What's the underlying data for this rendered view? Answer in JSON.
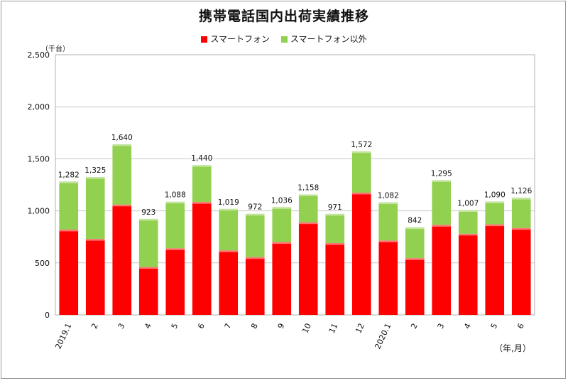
{
  "chart_data": {
    "type": "bar",
    "stacked": true,
    "title": "携帯電話国内出荷実績推移",
    "unit_label": "（千台）",
    "x_unit_label": "（年,月）",
    "categories": [
      "2019.1",
      "2",
      "3",
      "4",
      "5",
      "6",
      "7",
      "8",
      "9",
      "10",
      "11",
      "12",
      "2020.1",
      "2",
      "3",
      "4",
      "5",
      "6"
    ],
    "series": [
      {
        "name": "スマートフォン",
        "color": "#ff0000",
        "values": [
          820,
          730,
          1060,
          460,
          640,
          1085,
          620,
          555,
          700,
          890,
          690,
          1175,
          715,
          545,
          865,
          780,
          870,
          835
        ]
      },
      {
        "name": "スマートフォン以外",
        "color": "#92d050",
        "values": [
          462,
          595,
          580,
          463,
          448,
          355,
          399,
          417,
          336,
          268,
          281,
          397,
          367,
          297,
          430,
          227,
          220,
          291
        ]
      }
    ],
    "totals": [
      1282,
      1325,
      1640,
      923,
      1088,
      1440,
      1019,
      972,
      1036,
      1158,
      971,
      1572,
      1082,
      842,
      1295,
      1007,
      1090,
      1126
    ],
    "total_labels": [
      "1,282",
      "1,325",
      "1,640",
      "923",
      "1,088",
      "1,440",
      "1,019",
      "972",
      "1,036",
      "1,158",
      "971",
      "1,572",
      "1,082",
      "842",
      "1,295",
      "1,007",
      "1,090",
      "1,126"
    ],
    "ylim": [
      0,
      2500
    ],
    "yticks": [
      0,
      500,
      1000,
      1500,
      2000,
      2500
    ],
    "ytick_labels": [
      "0",
      "500",
      "1,000",
      "1,500",
      "2,000",
      "2,500"
    ],
    "grid": true,
    "legend_position": "top"
  }
}
